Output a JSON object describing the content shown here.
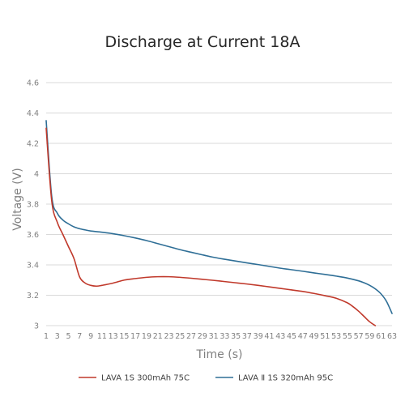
{
  "chart_data": {
    "type": "line",
    "title": "Discharge at Current 18A",
    "xlabel": "Time (s)",
    "ylabel": "Voltage (V)",
    "ylim": [
      3,
      4.6
    ],
    "xlim": [
      1,
      63
    ],
    "yticks": [
      "3",
      "3.2",
      "3.4",
      "3.6",
      "3.8",
      "4",
      "4.2",
      "4.4",
      "4.6"
    ],
    "xticks": [
      "1",
      "3",
      "5",
      "7",
      "9",
      "11",
      "13",
      "15",
      "17",
      "19",
      "21",
      "23",
      "25",
      "27",
      "29",
      "31",
      "33",
      "35",
      "37",
      "39",
      "41",
      "43",
      "45",
      "47",
      "49",
      "51",
      "53",
      "55",
      "57",
      "59",
      "61",
      "63"
    ],
    "grid": true,
    "legend": "bottom",
    "series": [
      {
        "name": "LAVA 1S 300mAh 75C",
        "color": "#c0392b",
        "x": [
          1,
          2,
          3,
          4,
          5,
          6,
          7,
          8,
          9,
          10,
          11,
          13,
          15,
          17,
          19,
          21,
          23,
          25,
          27,
          29,
          31,
          33,
          35,
          37,
          39,
          41,
          43,
          45,
          47,
          49,
          51,
          53,
          55,
          56,
          57,
          58,
          59,
          60
        ],
        "values": [
          4.3,
          3.82,
          3.68,
          3.6,
          3.52,
          3.44,
          3.32,
          3.28,
          3.265,
          3.26,
          3.265,
          3.28,
          3.3,
          3.31,
          3.318,
          3.322,
          3.322,
          3.318,
          3.312,
          3.305,
          3.298,
          3.29,
          3.282,
          3.274,
          3.265,
          3.255,
          3.245,
          3.235,
          3.225,
          3.212,
          3.197,
          3.18,
          3.15,
          3.125,
          3.095,
          3.06,
          3.025,
          3.0
        ]
      },
      {
        "name": "LAVA Ⅱ 1S 320mAh 95C",
        "color": "#2e6e96",
        "x": [
          1,
          2,
          3,
          4,
          5,
          6,
          7,
          8,
          9,
          11,
          13,
          15,
          17,
          19,
          21,
          23,
          25,
          27,
          29,
          31,
          33,
          35,
          37,
          39,
          41,
          43,
          45,
          47,
          49,
          51,
          53,
          55,
          57,
          58,
          59,
          60,
          61,
          62,
          63
        ],
        "values": [
          4.35,
          3.85,
          3.74,
          3.695,
          3.67,
          3.65,
          3.638,
          3.63,
          3.623,
          3.615,
          3.605,
          3.592,
          3.577,
          3.56,
          3.54,
          3.52,
          3.5,
          3.483,
          3.466,
          3.45,
          3.437,
          3.425,
          3.413,
          3.402,
          3.39,
          3.378,
          3.368,
          3.358,
          3.347,
          3.337,
          3.326,
          3.313,
          3.295,
          3.282,
          3.265,
          3.242,
          3.21,
          3.16,
          3.08
        ]
      }
    ]
  }
}
